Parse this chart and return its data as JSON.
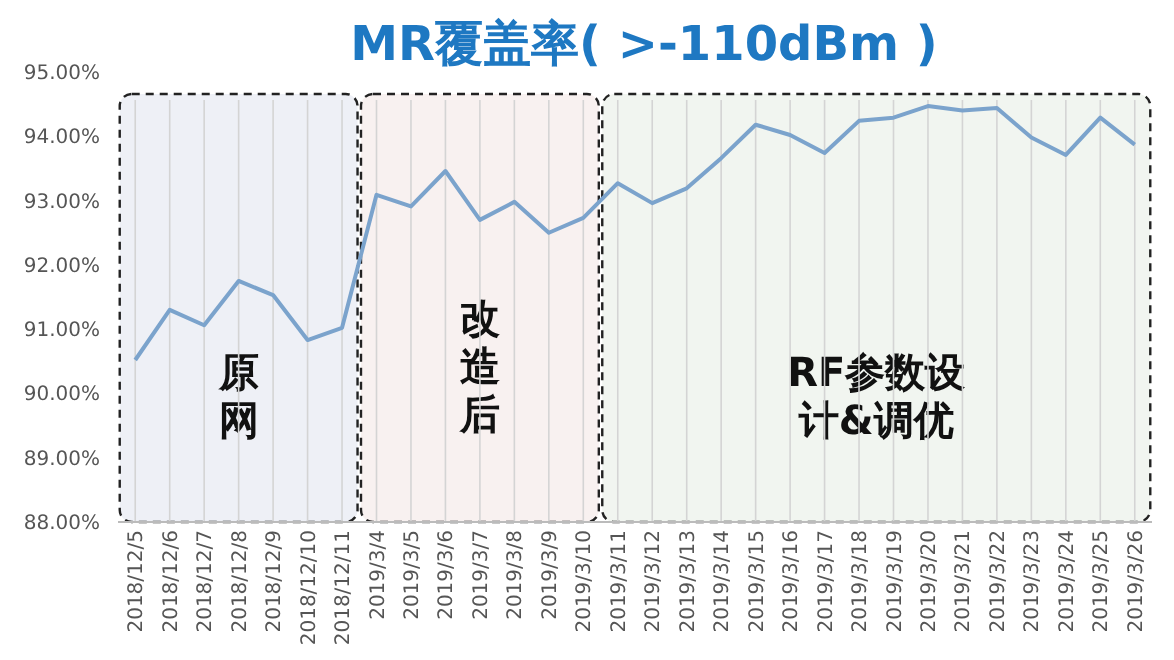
{
  "chart_data": {
    "type": "line",
    "title": "MR覆盖率( >-110dBm )",
    "categories": [
      "2018/12/5",
      "2018/12/6",
      "2018/12/7",
      "2018/12/8",
      "2018/12/9",
      "2018/12/10",
      "2018/12/11",
      "2019/3/4",
      "2019/3/5",
      "2019/3/6",
      "2019/3/7",
      "2019/3/8",
      "2019/3/9",
      "2019/3/10",
      "2019/3/11",
      "2019/3/12",
      "2019/3/13",
      "2019/3/14",
      "2019/3/15",
      "2019/3/16",
      "2019/3/17",
      "2019/3/18",
      "2019/3/19",
      "2019/3/20",
      "2019/3/21",
      "2019/3/22",
      "2019/3/23",
      "2019/3/24",
      "2019/3/25",
      "2019/3/26"
    ],
    "series": [
      {
        "color": "#7ba3cc",
        "values": [
          90.52,
          91.3,
          91.06,
          91.75,
          91.53,
          90.83,
          91.02,
          93.09,
          92.91,
          93.46,
          92.7,
          92.98,
          92.5,
          92.73,
          93.27,
          92.96,
          93.19,
          93.66,
          94.18,
          94.02,
          93.74,
          94.24,
          94.29,
          94.47,
          94.4,
          94.44,
          93.98,
          93.71,
          94.29,
          93.87
        ]
      }
    ],
    "ylim": [
      88,
      95
    ],
    "yticks": [
      {
        "value": 88,
        "label": "88.00%"
      },
      {
        "value": 89,
        "label": "89.00%"
      },
      {
        "value": 90,
        "label": "90.00%"
      },
      {
        "value": 91,
        "label": "91.00%"
      },
      {
        "value": 92,
        "label": "92.00%"
      },
      {
        "value": 93,
        "label": "93.00%"
      },
      {
        "value": 94,
        "label": "94.00%"
      },
      {
        "value": 95,
        "label": "95.00%"
      }
    ],
    "grid": "x",
    "marker": "none",
    "line_style": "solid",
    "bands": [
      {
        "axis": "x",
        "from": "2018/12/5",
        "to": "2018/12/11",
        "label": "原网",
        "color": "#eef0f6"
      },
      {
        "axis": "x",
        "from": "2019/3/4",
        "to": "2019/3/10",
        "label": "改造后",
        "color": "#f8f1f0"
      },
      {
        "axis": "x",
        "from": "2019/3/11",
        "to": "2019/3/26",
        "label": "RF参数设计&调优",
        "color": "#f1f5f0"
      }
    ]
  }
}
